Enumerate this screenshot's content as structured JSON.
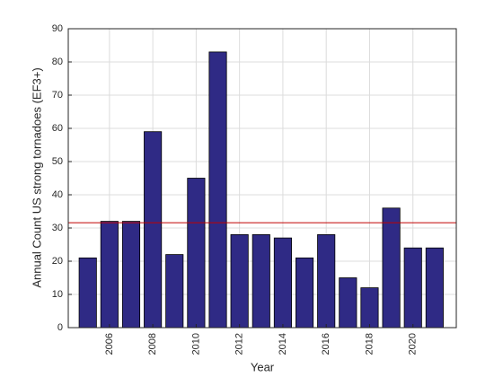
{
  "chart_data": {
    "type": "bar",
    "x_label": "Year",
    "y_label": "Annual Count US strong tornadoes (EF3+)",
    "x": [
      2005,
      2006,
      2007,
      2008,
      2009,
      2010,
      2011,
      2012,
      2013,
      2014,
      2015,
      2016,
      2017,
      2018,
      2019,
      2020,
      2021
    ],
    "values": [
      21,
      32,
      32,
      59,
      22,
      45,
      83,
      28,
      28,
      27,
      21,
      28,
      15,
      12,
      36,
      24,
      24
    ],
    "color": "#2f2a85",
    "reference_line": 31.6,
    "reference_color": "#c00000",
    "xlim": [
      2004.1,
      2022
    ],
    "xticks": [
      2006,
      2008,
      2010,
      2012,
      2014,
      2016,
      2018,
      2020
    ],
    "ylim": [
      0,
      90
    ],
    "yticks": [
      0,
      10,
      20,
      30,
      40,
      50,
      60,
      70,
      80,
      90
    ],
    "grid": true
  }
}
